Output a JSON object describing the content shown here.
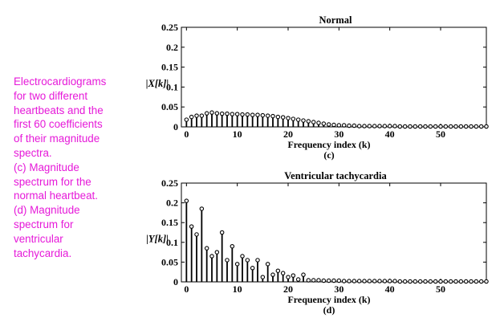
{
  "caption": [
    "Electrocardiograms",
    "for two different",
    "heartbeats and the",
    "first 60 coefficients",
    "of their magnitude",
    "spectra.",
    "(c) Magnitude",
    "spectrum for the",
    "normal heartbeat.",
    "(d) Magnitude",
    "spectrum for",
    "ventricular",
    "tachycardia."
  ],
  "chart_data": [
    {
      "type": "stem",
      "title": "Normal",
      "ylabel": "|X[k]|",
      "xlabel": "Frequency index (k)",
      "panel_label": "(c)",
      "xlim": [
        -1,
        59
      ],
      "ylim": [
        0,
        0.25
      ],
      "xticks": [
        0,
        10,
        20,
        30,
        40,
        50
      ],
      "yticks": [
        0,
        0.05,
        0.1,
        0.15,
        0.2,
        0.25
      ],
      "ytick_labels": [
        "0",
        "0.05",
        "0.1",
        "0.15",
        "0.2",
        "0.25"
      ],
      "x": [
        0,
        1,
        2,
        3,
        4,
        5,
        6,
        7,
        8,
        9,
        10,
        11,
        12,
        13,
        14,
        15,
        16,
        17,
        18,
        19,
        20,
        21,
        22,
        23,
        24,
        25,
        26,
        27,
        28,
        29,
        30,
        31,
        32,
        33,
        34,
        35,
        36,
        37,
        38,
        39,
        40,
        41,
        42,
        43,
        44,
        45,
        46,
        47,
        48,
        49,
        50,
        51,
        52,
        53,
        54,
        55,
        56,
        57,
        58,
        59
      ],
      "values": [
        0.018,
        0.025,
        0.028,
        0.028,
        0.034,
        0.036,
        0.034,
        0.033,
        0.033,
        0.032,
        0.032,
        0.031,
        0.031,
        0.03,
        0.03,
        0.029,
        0.028,
        0.027,
        0.025,
        0.024,
        0.022,
        0.02,
        0.018,
        0.016,
        0.014,
        0.012,
        0.01,
        0.008,
        0.006,
        0.005,
        0.004,
        0.004,
        0.003,
        0.003,
        0.002,
        0.002,
        0.002,
        0.002,
        0.002,
        0.002,
        0.002,
        0.002,
        0.001,
        0.001,
        0.001,
        0.001,
        0.001,
        0.001,
        0.001,
        0.001,
        0.001,
        0.001,
        0.001,
        0.001,
        0.001,
        0.001,
        0.001,
        0.001,
        0.001,
        0.001
      ]
    },
    {
      "type": "stem",
      "title": "Ventricular tachycardia",
      "ylabel": "|Y[k]|",
      "xlabel": "Frequency index (k)",
      "panel_label": "(d)",
      "xlim": [
        -1,
        59
      ],
      "ylim": [
        0,
        0.25
      ],
      "xticks": [
        0,
        10,
        20,
        30,
        40,
        50
      ],
      "yticks": [
        0,
        0.05,
        0.1,
        0.15,
        0.2,
        0.25
      ],
      "ytick_labels": [
        "0",
        "0.05",
        "0.1",
        "0.15",
        "0.2",
        "0.25"
      ],
      "x": [
        0,
        1,
        2,
        3,
        4,
        5,
        6,
        7,
        8,
        9,
        10,
        11,
        12,
        13,
        14,
        15,
        16,
        17,
        18,
        19,
        20,
        21,
        22,
        23,
        24,
        25,
        26,
        27,
        28,
        29,
        30,
        31,
        32,
        33,
        34,
        35,
        36,
        37,
        38,
        39,
        40,
        41,
        42,
        43,
        44,
        45,
        46,
        47,
        48,
        49,
        50,
        51,
        52,
        53,
        54,
        55,
        56,
        57,
        58,
        59
      ],
      "values": [
        0.205,
        0.14,
        0.12,
        0.185,
        0.085,
        0.065,
        0.075,
        0.125,
        0.055,
        0.09,
        0.045,
        0.065,
        0.055,
        0.035,
        0.055,
        0.012,
        0.045,
        0.018,
        0.028,
        0.022,
        0.012,
        0.016,
        0.006,
        0.018,
        0.004,
        0.004,
        0.004,
        0.003,
        0.003,
        0.003,
        0.003,
        0.002,
        0.002,
        0.002,
        0.002,
        0.002,
        0.002,
        0.002,
        0.002,
        0.002,
        0.002,
        0.002,
        0.001,
        0.001,
        0.001,
        0.001,
        0.001,
        0.001,
        0.001,
        0.001,
        0.001,
        0.001,
        0.001,
        0.001,
        0.001,
        0.001,
        0.001,
        0.001,
        0.001,
        0.001
      ]
    }
  ]
}
